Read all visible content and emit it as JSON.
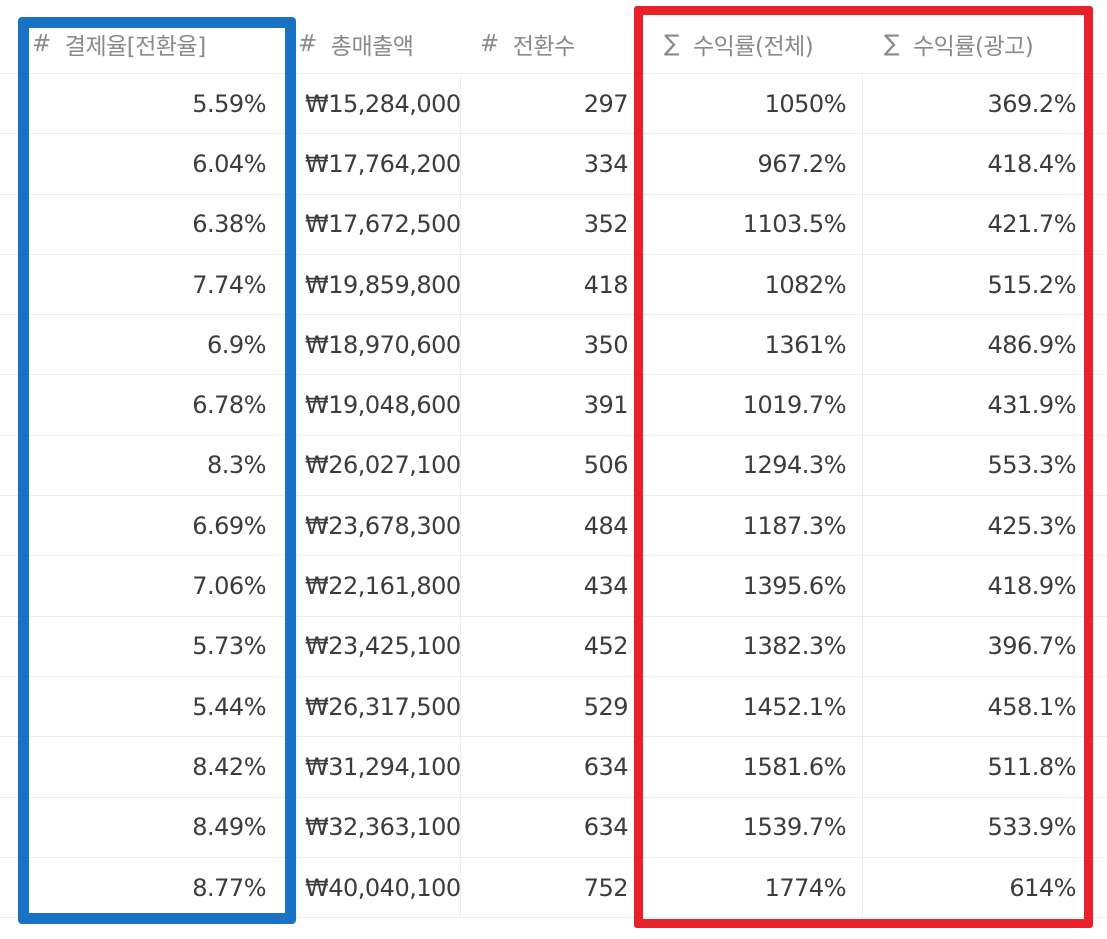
{
  "columns": [
    {
      "icon": "#",
      "label": "결제율[전환율]"
    },
    {
      "icon": "#",
      "label": "총매출액"
    },
    {
      "icon": "#",
      "label": "전환수"
    },
    {
      "icon": "∑",
      "label": "수익률(전체)"
    },
    {
      "icon": "∑",
      "label": "수익률(광고)"
    }
  ],
  "rows": [
    [
      "5.59%",
      "₩15,284,000",
      "297",
      "1050%",
      "369.2%"
    ],
    [
      "6.04%",
      "₩17,764,200",
      "334",
      "967.2%",
      "418.4%"
    ],
    [
      "6.38%",
      "₩17,672,500",
      "352",
      "1103.5%",
      "421.7%"
    ],
    [
      "7.74%",
      "₩19,859,800",
      "418",
      "1082%",
      "515.2%"
    ],
    [
      "6.9%",
      "₩18,970,600",
      "350",
      "1361%",
      "486.9%"
    ],
    [
      "6.78%",
      "₩19,048,600",
      "391",
      "1019.7%",
      "431.9%"
    ],
    [
      "8.3%",
      "₩26,027,100",
      "506",
      "1294.3%",
      "553.3%"
    ],
    [
      "6.69%",
      "₩23,678,300",
      "484",
      "1187.3%",
      "425.3%"
    ],
    [
      "7.06%",
      "₩22,161,800",
      "434",
      "1395.6%",
      "418.9%"
    ],
    [
      "5.73%",
      "₩23,425,100",
      "452",
      "1382.3%",
      "396.7%"
    ],
    [
      "5.44%",
      "₩26,317,500",
      "529",
      "1452.1%",
      "458.1%"
    ],
    [
      "8.42%",
      "₩31,294,100",
      "634",
      "1581.6%",
      "511.8%"
    ],
    [
      "8.49%",
      "₩32,363,100",
      "634",
      "1539.7%",
      "533.9%"
    ],
    [
      "8.77%",
      "₩40,040,100",
      "752",
      "1774%",
      "614%"
    ]
  ],
  "highlights": {
    "conversion_column_color": "#1a72c4",
    "roas_columns_color": "#e8202a"
  },
  "icons": {
    "number_type": "hash-icon",
    "formula_type": "sigma-icon"
  }
}
